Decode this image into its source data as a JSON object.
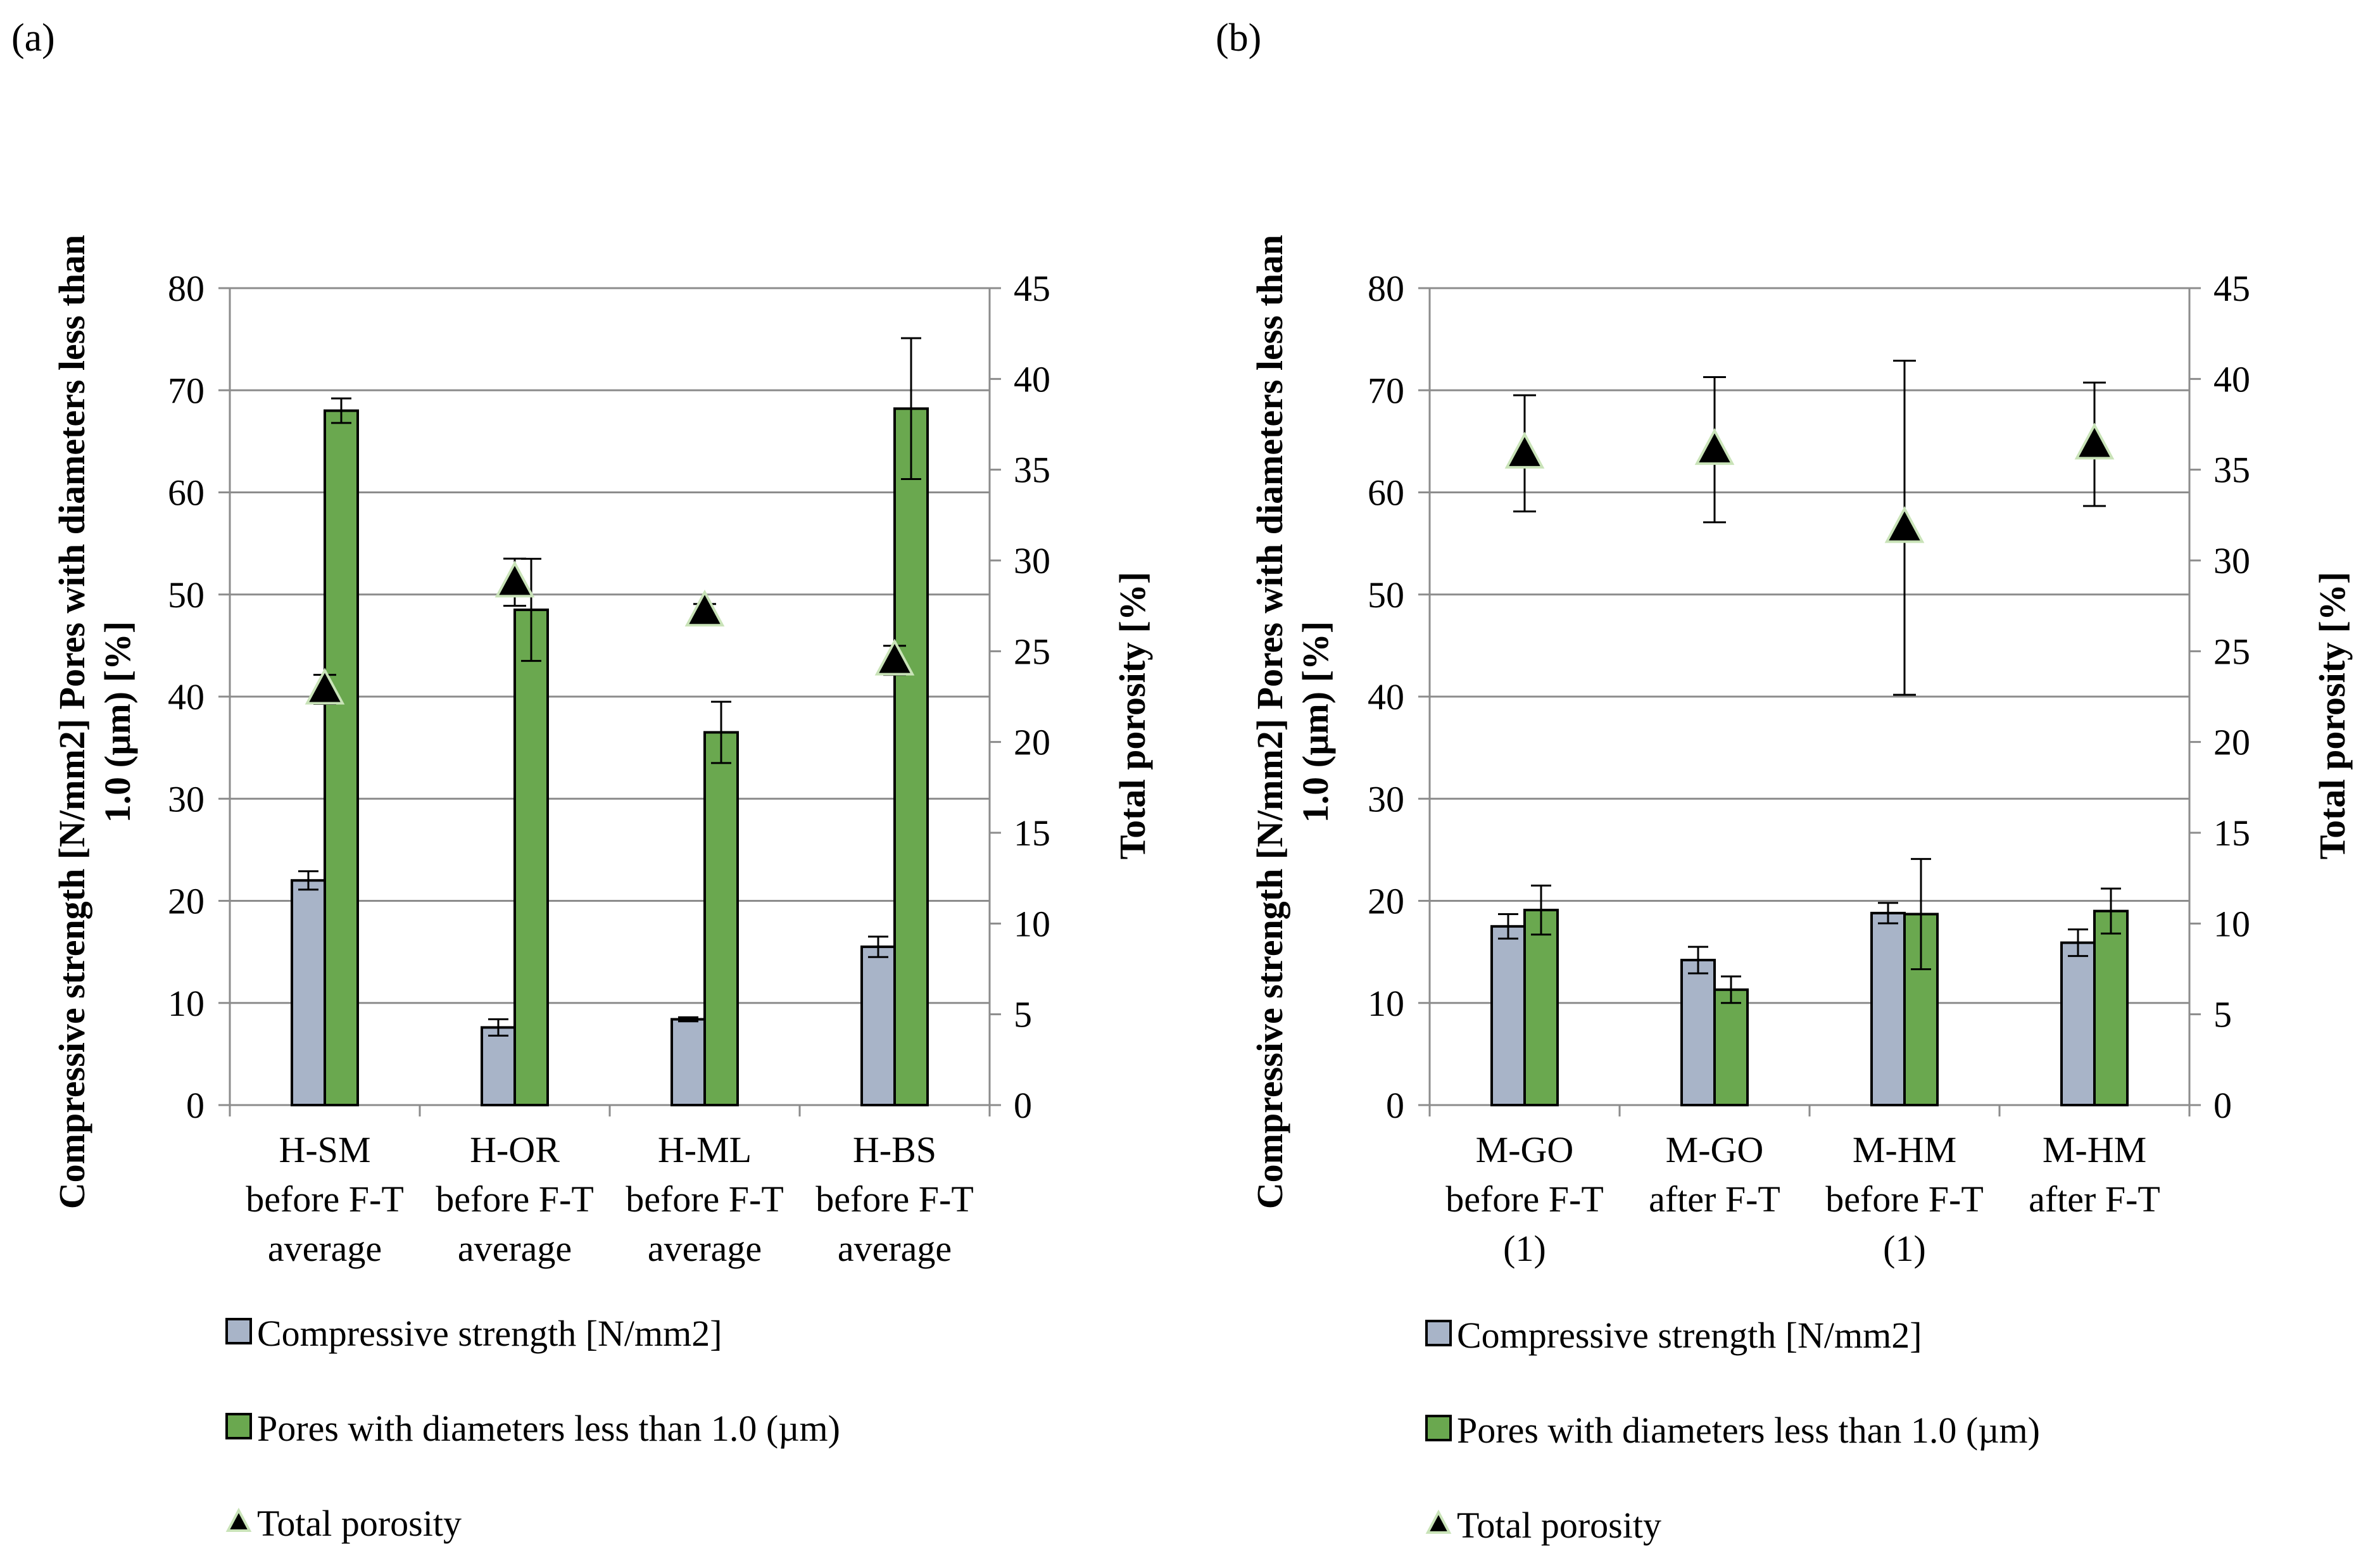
{
  "chart_data": [
    {
      "panel_label": "(a)",
      "type": "bar",
      "categories": [
        [
          "H-SM",
          "before F-T",
          "average"
        ],
        [
          "H-OR",
          "before F-T",
          "average"
        ],
        [
          "H-ML",
          "before F-T",
          "average"
        ],
        [
          "H-BS",
          "before F-T",
          "average"
        ]
      ],
      "left_axis": {
        "title_lines": [
          "Compressive strength  [N/mm2]  Pores with diameters less than",
          "1.0 (µm) [%]"
        ],
        "ylim": [
          0,
          80
        ],
        "ticks": [
          "0",
          "10",
          "20",
          "30",
          "40",
          "50",
          "60",
          "70",
          "80"
        ]
      },
      "right_axis": {
        "title": "Total porosity [%]",
        "ylim": [
          0,
          45
        ],
        "ticks": [
          "0",
          "5",
          "10",
          "15",
          "20",
          "25",
          "30",
          "35",
          "40",
          "45"
        ]
      },
      "series": [
        {
          "name": "Compressive strength  [N/mm2]",
          "kind": "bar",
          "axis": "left",
          "color": "#a8b4c8",
          "values": [
            22.0,
            7.6,
            8.4,
            15.5
          ],
          "errors": [
            0.9,
            0.8,
            0.2,
            1.0
          ]
        },
        {
          "name": "Pores with diameters less than 1.0 (µm)",
          "kind": "bar",
          "axis": "left",
          "color": "#6aa84f",
          "values": [
            68.0,
            48.5,
            36.5,
            68.2
          ],
          "errors": [
            1.2,
            5.0,
            3.0,
            6.9
          ]
        },
        {
          "name": "Total porosity",
          "kind": "marker",
          "axis": "right",
          "color": "#000000",
          "values": [
            22.9,
            28.8,
            27.2,
            24.5
          ],
          "errors": [
            0.8,
            1.3,
            0.4,
            0.8
          ]
        }
      ],
      "legend": {
        "position": "bottom",
        "items": [
          "Compressive strength  [N/mm2]",
          "Pores with diameters less than 1.0 (µm)",
          "Total porosity"
        ]
      }
    },
    {
      "panel_label": "(b)",
      "type": "bar",
      "categories": [
        [
          "M-GO",
          "before F-T",
          "(1)"
        ],
        [
          "M-GO",
          "after F-T"
        ],
        [
          "M-HM",
          "before F-T",
          "(1)"
        ],
        [
          "M-HM",
          "after F-T"
        ]
      ],
      "left_axis": {
        "title_lines": [
          "Compressive strength  [N/mm2]  Pores with diameters less than",
          "1.0 (µm) [%]"
        ],
        "ylim": [
          0,
          80
        ],
        "ticks": [
          "0",
          "10",
          "20",
          "30",
          "40",
          "50",
          "60",
          "70",
          "80"
        ]
      },
      "right_axis": {
        "title": "Total porosity [%]",
        "ylim": [
          0,
          45
        ],
        "ticks": [
          "0",
          "5",
          "10",
          "15",
          "20",
          "25",
          "30",
          "35",
          "40",
          "45"
        ]
      },
      "series": [
        {
          "name": "Compressive strength  [N/mm2]",
          "kind": "bar",
          "axis": "left",
          "color": "#a8b4c8",
          "values": [
            17.5,
            14.2,
            18.8,
            15.9
          ],
          "errors": [
            1.2,
            1.3,
            1.0,
            1.3
          ]
        },
        {
          "name": "Pores with diameters less than 1.0 (µm)",
          "kind": "bar",
          "axis": "left",
          "color": "#6aa84f",
          "values": [
            19.1,
            11.3,
            18.7,
            19.0
          ],
          "errors": [
            2.4,
            1.3,
            5.4,
            2.2
          ]
        },
        {
          "name": "Total porosity",
          "kind": "marker",
          "axis": "right",
          "color": "#000000",
          "values": [
            35.9,
            36.1,
            31.8,
            36.4
          ],
          "errors": [
            3.2,
            4.0,
            9.2,
            3.4
          ]
        }
      ],
      "legend": {
        "position": "bottom",
        "items": [
          "Compressive strength  [N/mm2]",
          "Pores with diameters less than 1.0 (µm)",
          "Total porosity"
        ]
      }
    }
  ]
}
